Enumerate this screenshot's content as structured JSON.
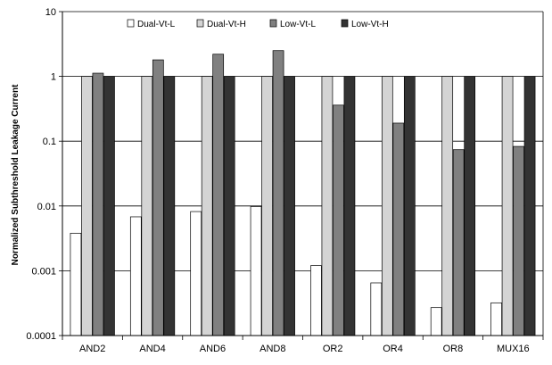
{
  "chart_data": {
    "type": "bar",
    "title": "",
    "xlabel": "",
    "ylabel": "Normalized Subthreshold Leakage Current",
    "yscale": "log",
    "ylim": [
      0.0001,
      10
    ],
    "yticks": [
      0.0001,
      0.001,
      0.01,
      0.1,
      1,
      10
    ],
    "ytick_labels": [
      "0.0001",
      "0.001",
      "0.01",
      "0.1",
      "1",
      "10"
    ],
    "grid": "horizontal",
    "legend_position": "top",
    "categories": [
      "AND2",
      "AND4",
      "AND6",
      "AND8",
      "OR2",
      "OR4",
      "OR8",
      "MUX16"
    ],
    "series": [
      {
        "name": "Dual-Vt-L",
        "color": "#ffffff",
        "values": [
          0.0038,
          0.0068,
          0.0082,
          0.0098,
          0.0012,
          0.00065,
          0.00027,
          0.00032
        ]
      },
      {
        "name": "Dual-Vt-H",
        "color": "#d4d4d4",
        "values": [
          1,
          1,
          1,
          1,
          1,
          1,
          1,
          1
        ]
      },
      {
        "name": "Low-Vt-L",
        "color": "#808080",
        "values": [
          1.12,
          1.8,
          2.2,
          2.5,
          0.36,
          0.19,
          0.074,
          0.083
        ]
      },
      {
        "name": "Low-Vt-H",
        "color": "#333333",
        "values": [
          1,
          1,
          1,
          1,
          1,
          1,
          1,
          1
        ]
      }
    ]
  }
}
